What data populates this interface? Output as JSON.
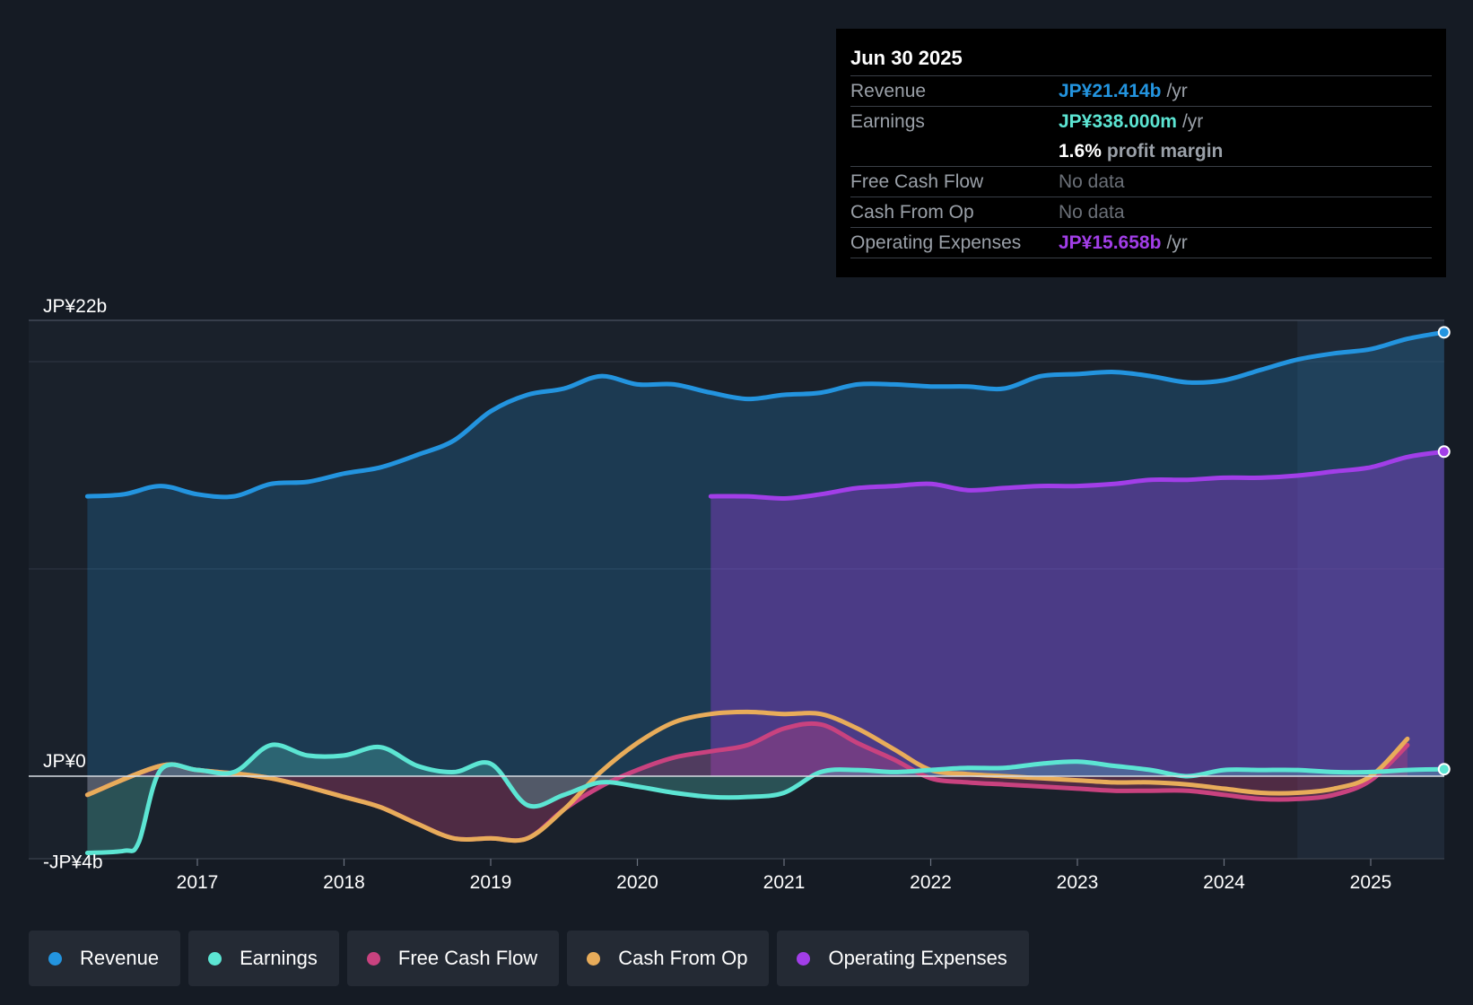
{
  "tooltip": {
    "date": "Jun 30 2025",
    "rows": {
      "revenue": {
        "label": "Revenue",
        "value": "JP¥21.414b",
        "unit": "/yr"
      },
      "earnings": {
        "label": "Earnings",
        "value": "JP¥338.000m",
        "unit": "/yr"
      },
      "margin": {
        "value": "1.6%",
        "unit": "profit margin"
      },
      "fcf": {
        "label": "Free Cash Flow",
        "value": "No data"
      },
      "cfo": {
        "label": "Cash From Op",
        "value": "No data"
      },
      "opex": {
        "label": "Operating Expenses",
        "value": "JP¥15.658b",
        "unit": "/yr"
      }
    }
  },
  "legend": {
    "revenue": "Revenue",
    "earnings": "Earnings",
    "fcf": "Free Cash Flow",
    "cfo": "Cash From Op",
    "opex": "Operating Expenses"
  },
  "colors": {
    "revenue": "#2394df",
    "earnings": "#5ce5d3",
    "fcf": "#c9427f",
    "cfo": "#e8ac5a",
    "opex": "#a23ee8"
  },
  "chart_data": {
    "type": "line",
    "title": "",
    "y_labels": [
      "JP¥22b",
      "JP¥0",
      "-JP¥4b"
    ],
    "ylim": [
      -4,
      22
    ],
    "xlim": [
      2016.25,
      2025.5
    ],
    "x_ticks": [
      2017,
      2018,
      2019,
      2020,
      2021,
      2022,
      2023,
      2024,
      2025
    ],
    "x_tick_labels": [
      "2017",
      "2018",
      "2019",
      "2020",
      "2021",
      "2022",
      "2023",
      "2024",
      "2025"
    ],
    "highlight_start": 2024.5,
    "series": [
      {
        "name": "Revenue",
        "key": "revenue",
        "fill": true,
        "x": [
          2016.25,
          2016.5,
          2016.75,
          2017,
          2017.25,
          2017.5,
          2017.75,
          2018,
          2018.25,
          2018.5,
          2018.75,
          2019,
          2019.25,
          2019.5,
          2019.75,
          2020,
          2020.25,
          2020.5,
          2020.75,
          2021,
          2021.25,
          2021.5,
          2021.75,
          2022,
          2022.25,
          2022.5,
          2022.75,
          2023,
          2023.25,
          2023.5,
          2023.75,
          2024,
          2024.25,
          2024.5,
          2024.75,
          2025,
          2025.25,
          2025.5
        ],
        "y": [
          13.5,
          13.6,
          14.0,
          13.6,
          13.5,
          14.1,
          14.2,
          14.6,
          14.9,
          15.5,
          16.2,
          17.6,
          18.4,
          18.7,
          19.3,
          18.9,
          18.9,
          18.5,
          18.2,
          18.4,
          18.5,
          18.9,
          18.9,
          18.8,
          18.8,
          18.7,
          19.3,
          19.4,
          19.5,
          19.3,
          19.0,
          19.1,
          19.6,
          20.1,
          20.4,
          20.6,
          21.1,
          21.414
        ]
      },
      {
        "name": "Earnings",
        "key": "earnings",
        "fill": true,
        "x": [
          2016.25,
          2016.5,
          2016.6,
          2016.75,
          2017,
          2017.25,
          2017.5,
          2017.75,
          2018,
          2018.25,
          2018.5,
          2018.75,
          2019,
          2019.25,
          2019.5,
          2019.75,
          2020,
          2020.25,
          2020.5,
          2020.75,
          2021,
          2021.25,
          2021.5,
          2021.75,
          2022,
          2022.25,
          2022.5,
          2022.75,
          2023,
          2023.25,
          2023.5,
          2023.75,
          2024,
          2024.25,
          2024.5,
          2024.75,
          2025,
          2025.25,
          2025.5
        ],
        "y": [
          -3.7,
          -3.6,
          -3.2,
          0.3,
          0.3,
          0.2,
          1.5,
          1.0,
          1.0,
          1.4,
          0.5,
          0.2,
          0.6,
          -1.4,
          -0.9,
          -0.3,
          -0.5,
          -0.8,
          -1.0,
          -1.0,
          -0.8,
          0.2,
          0.3,
          0.2,
          0.3,
          0.4,
          0.4,
          0.6,
          0.7,
          0.5,
          0.3,
          0.0,
          0.3,
          0.3,
          0.3,
          0.2,
          0.2,
          0.3,
          0.338
        ]
      },
      {
        "name": "Free Cash Flow",
        "key": "fcf",
        "fill": true,
        "x": [
          2016.25,
          2016.75,
          2017,
          2017.5,
          2018,
          2018.25,
          2018.5,
          2018.75,
          2019,
          2019.25,
          2019.5,
          2019.75,
          2020,
          2020.25,
          2020.5,
          2020.75,
          2021,
          2021.25,
          2021.5,
          2021.75,
          2022,
          2022.25,
          2022.5,
          2022.75,
          2023,
          2023.25,
          2023.5,
          2023.75,
          2024,
          2024.25,
          2024.5,
          2024.75,
          2025,
          2025.25
        ],
        "y": [
          -0.9,
          0.5,
          0.3,
          -0.1,
          -1.0,
          -1.5,
          -2.3,
          -3.0,
          -3.0,
          -3.0,
          -1.6,
          -0.5,
          0.3,
          0.9,
          1.2,
          1.5,
          2.3,
          2.5,
          1.6,
          0.8,
          -0.1,
          -0.3,
          -0.4,
          -0.5,
          -0.6,
          -0.7,
          -0.7,
          -0.7,
          -0.9,
          -1.1,
          -1.1,
          -0.9,
          -0.2,
          1.5
        ]
      },
      {
        "name": "Cash From Op",
        "key": "cfo",
        "fill": false,
        "x": [
          2016.25,
          2016.75,
          2017,
          2017.5,
          2018,
          2018.25,
          2018.5,
          2018.75,
          2019,
          2019.25,
          2019.5,
          2019.75,
          2020,
          2020.25,
          2020.5,
          2020.75,
          2021,
          2021.25,
          2021.5,
          2021.75,
          2022,
          2022.25,
          2022.5,
          2022.75,
          2023,
          2023.25,
          2023.5,
          2023.75,
          2024,
          2024.25,
          2024.5,
          2024.75,
          2025,
          2025.25
        ],
        "y": [
          -0.9,
          0.5,
          0.3,
          -0.1,
          -1.0,
          -1.5,
          -2.3,
          -3.0,
          -3.0,
          -3.0,
          -1.6,
          0.2,
          1.6,
          2.6,
          3.0,
          3.1,
          3.0,
          3.0,
          2.3,
          1.3,
          0.3,
          0.1,
          0.0,
          -0.1,
          -0.2,
          -0.3,
          -0.3,
          -0.4,
          -0.6,
          -0.8,
          -0.8,
          -0.6,
          0.0,
          1.8
        ]
      },
      {
        "name": "Operating Expenses",
        "key": "opex",
        "fill": true,
        "x": [
          2020.5,
          2020.75,
          2021,
          2021.25,
          2021.5,
          2021.75,
          2022,
          2022.25,
          2022.5,
          2022.75,
          2023,
          2023.25,
          2023.5,
          2023.75,
          2024,
          2024.25,
          2024.5,
          2024.75,
          2025,
          2025.25,
          2025.5
        ],
        "y": [
          13.5,
          13.5,
          13.4,
          13.6,
          13.9,
          14.0,
          14.1,
          13.8,
          13.9,
          14.0,
          14.0,
          14.1,
          14.3,
          14.3,
          14.4,
          14.4,
          14.5,
          14.7,
          14.9,
          15.4,
          15.658
        ]
      }
    ]
  }
}
